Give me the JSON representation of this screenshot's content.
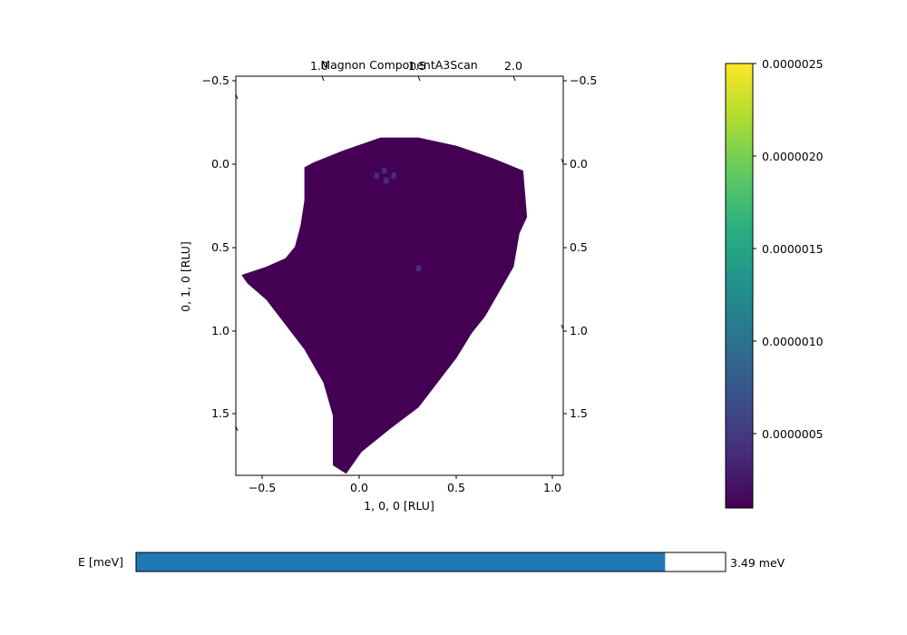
{
  "chart_data": {
    "type": "heatmap",
    "title": "Magnon ComponentA3Scan",
    "xlabel": "1, 0, 0 [RLU]",
    "ylabel": "0, 1, 0 [RLU]",
    "xlim": [
      -0.66,
      1.06
    ],
    "ylim": [
      1.86,
      -0.55
    ],
    "x_ticks": [
      "−0.5",
      "0.0",
      "0.5",
      "1.0"
    ],
    "y_ticks": [
      "−0.5",
      "0.0",
      "0.5",
      "1.0",
      "1.5"
    ],
    "y_ticks_right": [
      "−0.5",
      "0.0",
      "0.5",
      "1.0",
      "1.5"
    ],
    "top_ticks": [
      "1.0",
      "1.5",
      "2.0"
    ],
    "colormap": "viridis",
    "colorbar": {
      "min": 1e-07,
      "max": 2.5e-06,
      "ticks": [
        "0.0000005",
        "0.0000010",
        "0.0000015",
        "0.0000020",
        "0.0000025"
      ]
    },
    "background_intensity": 1e-07,
    "region_outline": [
      [
        -0.63,
        0.65
      ],
      [
        -0.5,
        0.6
      ],
      [
        -0.4,
        0.55
      ],
      [
        -0.35,
        0.48
      ],
      [
        -0.32,
        0.35
      ],
      [
        -0.3,
        0.2
      ],
      [
        -0.3,
        0.0
      ],
      [
        -0.25,
        -0.03
      ],
      [
        -0.1,
        -0.1
      ],
      [
        0.1,
        -0.18
      ],
      [
        0.3,
        -0.18
      ],
      [
        0.5,
        -0.13
      ],
      [
        0.7,
        -0.05
      ],
      [
        0.85,
        0.02
      ],
      [
        0.87,
        0.3
      ],
      [
        0.83,
        0.4
      ],
      [
        0.8,
        0.6
      ],
      [
        0.75,
        0.7
      ],
      [
        0.7,
        0.8
      ],
      [
        0.65,
        0.9
      ],
      [
        0.58,
        1.0
      ],
      [
        0.5,
        1.15
      ],
      [
        0.4,
        1.3
      ],
      [
        0.3,
        1.45
      ],
      [
        0.15,
        1.58
      ],
      [
        0.0,
        1.72
      ],
      [
        -0.08,
        1.85
      ],
      [
        -0.15,
        1.8
      ],
      [
        -0.15,
        1.5
      ],
      [
        -0.2,
        1.3
      ],
      [
        -0.3,
        1.1
      ],
      [
        -0.4,
        0.95
      ],
      [
        -0.5,
        0.8
      ],
      [
        -0.6,
        0.7
      ]
    ],
    "hotspots": [
      {
        "x": 0.12,
        "y": 0.02,
        "intensity": 3e-07
      },
      {
        "x": 0.13,
        "y": 0.08,
        "intensity": 4e-07
      },
      {
        "x": 0.08,
        "y": 0.05,
        "intensity": 3e-07
      },
      {
        "x": 0.17,
        "y": 0.05,
        "intensity": 3e-07
      },
      {
        "x": 0.3,
        "y": 0.61,
        "intensity": 3e-07
      }
    ]
  },
  "slider": {
    "label": "E [meV]",
    "value_text": "3.49 meV",
    "fraction": 0.898,
    "fill_color": "#1f77b4"
  }
}
